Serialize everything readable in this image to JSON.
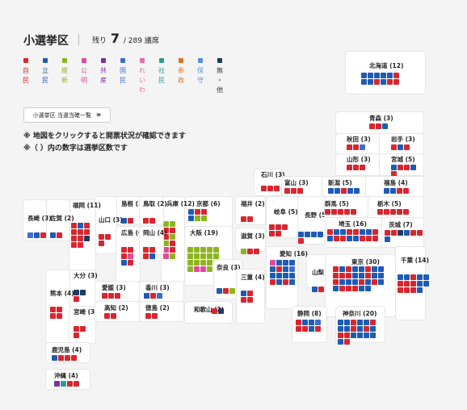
{
  "header": {
    "title": "小選挙区",
    "remaining_label": "残り",
    "remaining": "7",
    "total": "/ 289 議席"
  },
  "legend": [
    {
      "key": "自",
      "label": "自民",
      "color": "#d9262e"
    },
    {
      "key": "立",
      "label": "立民",
      "color": "#1d5bb5"
    },
    {
      "key": "維",
      "label": "維新",
      "color": "#8bb51d"
    },
    {
      "key": "公",
      "label": "公明",
      "color": "#e04a9a"
    },
    {
      "key": "共",
      "label": "共産",
      "color": "#7b2fa6"
    },
    {
      "key": "国",
      "label": "国民",
      "color": "#3a6fd1"
    },
    {
      "key": "れ",
      "label": "れいわ",
      "color": "#ee6ea8"
    },
    {
      "key": "社",
      "label": "社民",
      "color": "#2e9d8f"
    },
    {
      "key": "参",
      "label": "参政",
      "color": "#e0731c"
    },
    {
      "key": "保",
      "label": "保守",
      "color": "#5a8fe0"
    },
    {
      "key": "無",
      "label": "無・他",
      "color": "#1e3a5f"
    }
  ],
  "button": {
    "label": "小選挙区 当選当確一覧"
  },
  "notes": [
    "※ 地図をクリックすると開票状況が確認できます",
    "※（ ）内の数字は選挙区数です"
  ],
  "prefectures": [
    {
      "name": "北海道 (12)",
      "seats": "立立立立立自立立自立自自"
    },
    {
      "name": "青森 (3)",
      "seats": "自自立"
    },
    {
      "name": "秋田 (3)",
      "seats": "自自国"
    },
    {
      "name": "岩手 (3)",
      "seats": "自立自"
    },
    {
      "name": "山形 (3)",
      "seats": "自自自"
    },
    {
      "name": "宮城 (5)",
      "seats": "立自自立自"
    },
    {
      "name": "石川 (3)",
      "seats": "自自自"
    },
    {
      "name": "富山 (3)",
      "seats": "自自自"
    },
    {
      "name": "新潟 (5)",
      "seats": "立立自立立"
    },
    {
      "name": "福島 (4)",
      "seats": "立立自自"
    },
    {
      "name": "福井 (2)",
      "seats": "自自"
    },
    {
      "name": "長野 (5)",
      "seats": "立立立立自"
    },
    {
      "name": "群馬 (5)",
      "seats": "自自自自自"
    },
    {
      "name": "栃木 (5)",
      "seats": "自自自自自"
    },
    {
      "name": "茨城 (7)",
      "seats": "自自無立自自立"
    },
    {
      "name": "岐阜 (5)",
      "seats": "自自自自自"
    },
    {
      "name": "埼玉 (16)",
      "seats": "自立立自自立立自立自自立立自自自"
    },
    {
      "name": "京都 (6)",
      "seats": "立自自立維維"
    },
    {
      "name": "兵庫 (12)",
      "seats": "維維自自自維維自公自公維"
    },
    {
      "name": "大阪 (19)",
      "seats": "維維維維維維維維維維維維維維維維公公維"
    },
    {
      "name": "滋賀 (3)",
      "seats": "維自自"
    },
    {
      "name": "奈良 (3)",
      "seats": "立自維"
    },
    {
      "name": "和歌山 (2)",
      "seats": "自無"
    },
    {
      "name": "三重 (4)",
      "seats": "立自自自"
    },
    {
      "name": "愛知 (16)",
      "seats": "公立立立立自立国立立立立自立自立"
    },
    {
      "name": "山梨 (2)",
      "seats": "立自"
    },
    {
      "name": "東京 (30)",
      "seats": "自立自立立自立立自自自立立自立立自立立立自立自立立自自自立立"
    },
    {
      "name": "千葉 (14)",
      "seats": "立立自立立自自自立立自自自立"
    },
    {
      "name": "静岡 (8)",
      "seats": "自立立国自自立自"
    },
    {
      "name": "神奈川 (20)",
      "seats": "立立自立立自立立自立自立自自立立立立立自"
    },
    {
      "name": "島根 (2)",
      "seats": "立自"
    },
    {
      "name": "鳥取 (2)",
      "seats": "自自"
    },
    {
      "name": "山口 (3)",
      "seats": "自自自"
    },
    {
      "name": "広島 (6)",
      "seats": "自自自公立自"
    },
    {
      "name": "岡山 (4)",
      "seats": "自自自立"
    },
    {
      "name": "福岡 (11)",
      "seats": "自立自自自自自自無自自"
    },
    {
      "name": "佐賀 (2)",
      "seats": "立自"
    },
    {
      "name": "長崎 (3)",
      "seats": "国立自"
    },
    {
      "name": "大分 (3)",
      "seats": "無無自"
    },
    {
      "name": "熊本 (4)",
      "seats": "自自自自"
    },
    {
      "name": "宮崎 (3)",
      "seats": "自自自"
    },
    {
      "name": "鹿児島 (4)",
      "seats": "立自自自"
    },
    {
      "name": "沖縄 (4)",
      "seats": "共社自自"
    },
    {
      "name": "愛媛 (3)",
      "seats": "自自自"
    },
    {
      "name": "香川 (3)",
      "seats": "立自国"
    },
    {
      "name": "高知 (2)",
      "seats": "自自"
    },
    {
      "name": "徳島 (2)",
      "seats": "自自"
    }
  ]
}
